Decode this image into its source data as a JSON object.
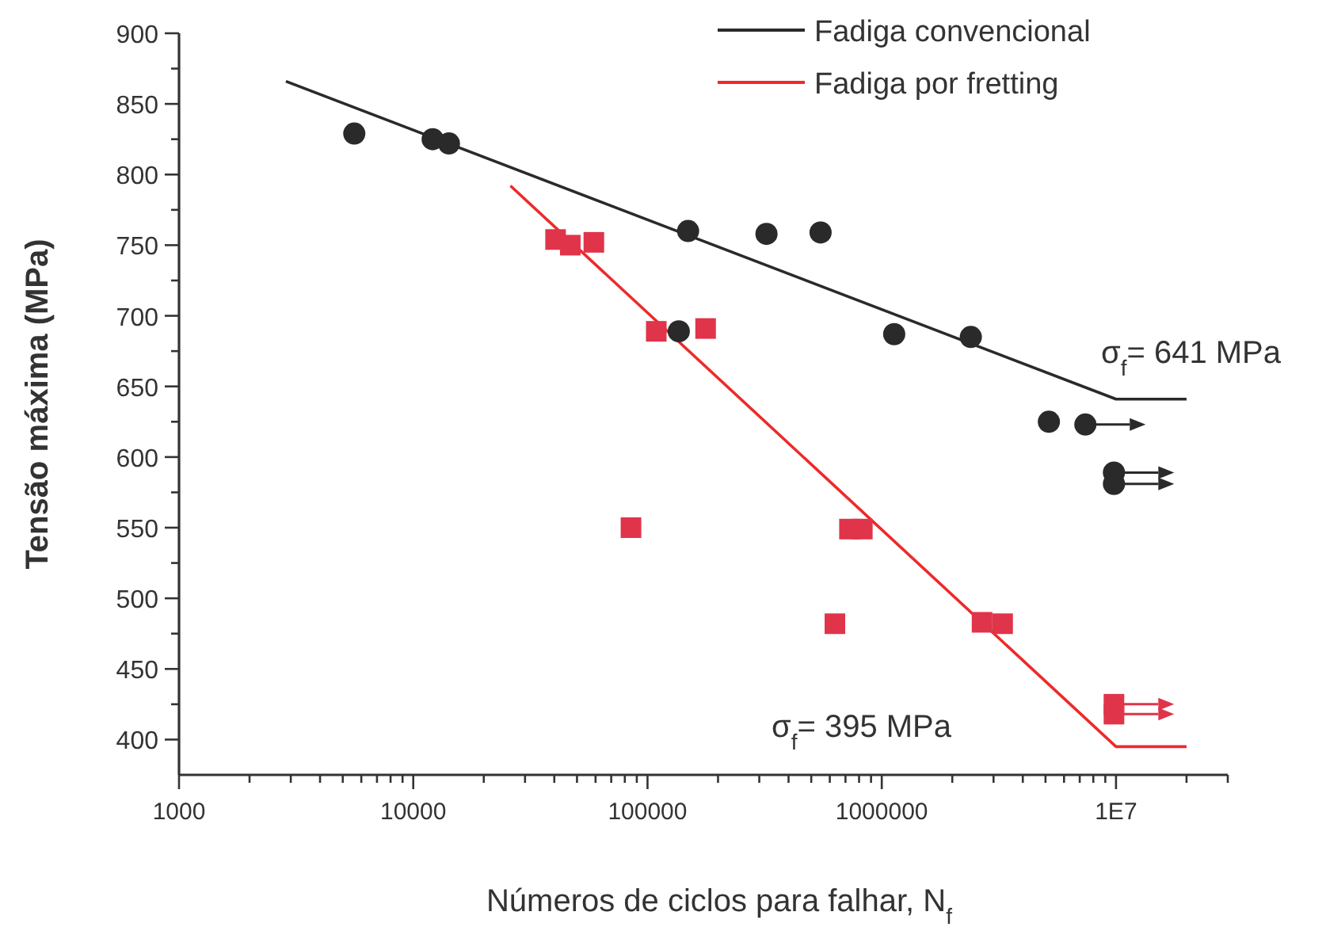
{
  "chart_data": {
    "type": "scatter",
    "xlabel": "Números de ciclos para falhar, N$_{f}$",
    "ylabel": "Tensão máxima (MPa)",
    "log": "x",
    "grid": false,
    "legend": "top right",
    "xlim": [
      1000,
      30000000
    ],
    "ylim": [
      375,
      900
    ],
    "xticks": [
      1000,
      {
        "value": 2000,
        "label": null
      },
      {
        "value": 3000,
        "label": null
      },
      {
        "value": 4000,
        "label": null
      },
      {
        "value": 5000,
        "label": null
      },
      {
        "value": 6000,
        "label": null
      },
      {
        "value": 7000,
        "label": null
      },
      {
        "value": 8000,
        "label": null
      },
      {
        "value": 9000,
        "label": null
      },
      10000,
      {
        "value": 20000,
        "label": null
      },
      {
        "value": 30000,
        "label": null
      },
      {
        "value": 40000,
        "label": null
      },
      {
        "value": 50000,
        "label": null
      },
      {
        "value": 60000,
        "label": null
      },
      {
        "value": 70000,
        "label": null
      },
      {
        "value": 80000,
        "label": null
      },
      {
        "value": 90000,
        "label": null
      },
      100000,
      {
        "value": 200000,
        "label": null
      },
      {
        "value": 300000,
        "label": null
      },
      {
        "value": 400000,
        "label": null
      },
      {
        "value": 500000,
        "label": null
      },
      {
        "value": 600000,
        "label": null
      },
      {
        "value": 700000,
        "label": null
      },
      {
        "value": 800000,
        "label": null
      },
      {
        "value": 900000,
        "label": null
      },
      1000000,
      {
        "value": 2000000,
        "label": null
      },
      {
        "value": 3000000,
        "label": null
      },
      {
        "value": 4000000,
        "label": null
      },
      {
        "value": 5000000,
        "label": null
      },
      {
        "value": 6000000,
        "label": null
      },
      {
        "value": 7000000,
        "label": null
      },
      {
        "value": 8000000,
        "label": null
      },
      {
        "value": 9000000,
        "label": null
      },
      {
        "value": 10000000,
        "label": "1E7"
      },
      {
        "value": 20000000,
        "label": null
      },
      {
        "value": 30000000,
        "label": null
      }
    ],
    "yticks": [
      400,
      {
        "value": 425,
        "label": null
      },
      450,
      {
        "value": 475,
        "label": null
      },
      500,
      {
        "value": 525,
        "label": null
      },
      550,
      {
        "value": 575,
        "label": null
      },
      600,
      {
        "value": 625,
        "label": null
      },
      650,
      {
        "value": 675,
        "label": null
      },
      700,
      {
        "value": 725,
        "label": null
      },
      750,
      {
        "value": 775,
        "label": null
      },
      800,
      {
        "value": 825,
        "label": null
      },
      850,
      {
        "value": 875,
        "label": null
      },
      900
    ],
    "series": [
      {
        "color": "#2a2a2a",
        "marker": "circle",
        "x": [
          5600,
          12100,
          14200,
          149000,
          322000,
          548000,
          136000,
          1130000,
          2400000,
          5170000,
          7400000,
          9800000,
          9800000
        ],
        "values": [
          829,
          825,
          822,
          760,
          758,
          759,
          689,
          687,
          685,
          625,
          623,
          589,
          581
        ]
      },
      {
        "color": "#e0344a",
        "marker": "square",
        "x": [
          40500,
          46800,
          59000,
          109000,
          177000,
          85000,
          728000,
          826000,
          631000,
          2680000,
          3280000,
          9800000,
          9800000
        ],
        "values": [
          754,
          750,
          752,
          689,
          691,
          550,
          549,
          549,
          482,
          483,
          482,
          425,
          418
        ]
      },
      {
        "type": "line",
        "name": "Fadiga convencional",
        "color": "#2a2a2a",
        "line_style": "solid",
        "x": [
          2860,
          10000000,
          20000000
        ],
        "values": [
          866,
          641,
          641
        ]
      },
      {
        "type": "line",
        "name": "Fadiga por fretting",
        "color": "#ee2a2a",
        "line_style": "solid",
        "x": [
          26000,
          10000000,
          20000000
        ],
        "values": [
          792,
          395,
          395
        ]
      }
    ],
    "annotations": [
      "σ$_{f}$= 641 MPa",
      "σ$_{f}$= 395 MPa"
    ]
  }
}
